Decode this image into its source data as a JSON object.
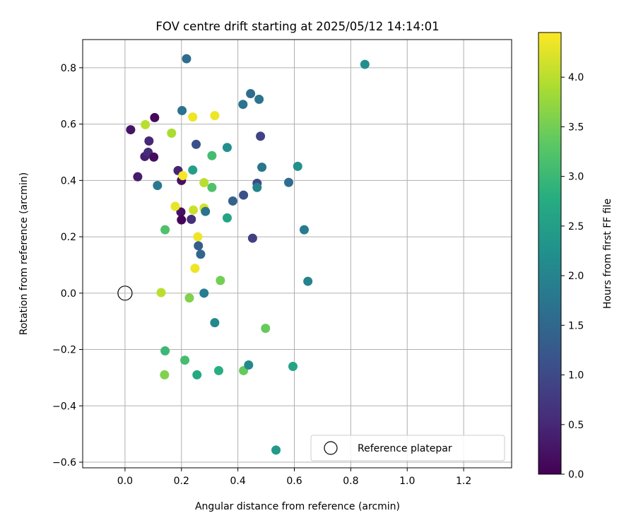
{
  "chart_data": {
    "type": "scatter",
    "title": "FOV centre drift starting at 2025/05/12 14:14:01",
    "xlabel": "Angular distance from reference (arcmin)",
    "ylabel": "Rotation from reference (arcmin)",
    "xlim": [
      -0.15,
      1.37
    ],
    "ylim": [
      -0.62,
      0.9
    ],
    "xticks": [
      "0.0",
      "0.2",
      "0.4",
      "0.6",
      "0.8",
      "1.0",
      "1.2"
    ],
    "yticks": [
      "−0.6",
      "−0.4",
      "−0.2",
      "0.0",
      "0.2",
      "0.4",
      "0.6",
      "0.8"
    ],
    "grid": true,
    "colormap": "viridis",
    "colorbar": {
      "label": "Hours from first FF file",
      "min": 0.0,
      "max": 4.45,
      "ticks": [
        "0.0",
        "0.5",
        "1.0",
        "1.5",
        "2.0",
        "2.5",
        "3.0",
        "3.5",
        "4.0"
      ]
    },
    "legend": {
      "position": "lower right",
      "entries": [
        "Reference platepar"
      ]
    },
    "reference_point": {
      "x": 0.0,
      "y": 0.0
    },
    "points": [
      {
        "x": 0.02,
        "y": 0.58,
        "c": 0.25
      },
      {
        "x": 0.045,
        "y": 0.413,
        "c": 0.35
      },
      {
        "x": 0.07,
        "y": 0.485,
        "c": 0.4
      },
      {
        "x": 0.082,
        "y": 0.5,
        "c": 0.55
      },
      {
        "x": 0.085,
        "y": 0.54,
        "c": 0.5
      },
      {
        "x": 0.102,
        "y": 0.483,
        "c": 0.15
      },
      {
        "x": 0.105,
        "y": 0.623,
        "c": 0.1
      },
      {
        "x": 0.188,
        "y": 0.435,
        "c": 0.45
      },
      {
        "x": 0.198,
        "y": 0.288,
        "c": 0.2
      },
      {
        "x": 0.2,
        "y": 0.4,
        "c": 0.2
      },
      {
        "x": 0.2,
        "y": 0.26,
        "c": 0.05
      },
      {
        "x": 0.235,
        "y": 0.262,
        "c": 0.6
      },
      {
        "x": 0.072,
        "y": 0.598,
        "c": 4.0
      },
      {
        "x": 0.165,
        "y": 0.568,
        "c": 3.9
      },
      {
        "x": 0.24,
        "y": 0.625,
        "c": 4.35
      },
      {
        "x": 0.318,
        "y": 0.63,
        "c": 4.35
      },
      {
        "x": 0.205,
        "y": 0.417,
        "c": 4.4
      },
      {
        "x": 0.178,
        "y": 0.308,
        "c": 4.3
      },
      {
        "x": 0.242,
        "y": 0.295,
        "c": 4.1
      },
      {
        "x": 0.28,
        "y": 0.302,
        "c": 4.2
      },
      {
        "x": 0.28,
        "y": 0.392,
        "c": 4.0
      },
      {
        "x": 0.258,
        "y": 0.2,
        "c": 4.35
      },
      {
        "x": 0.248,
        "y": 0.088,
        "c": 4.35
      },
      {
        "x": 0.128,
        "y": 0.002,
        "c": 4.0
      },
      {
        "x": 0.218,
        "y": 0.832,
        "c": 1.6
      },
      {
        "x": 0.202,
        "y": 0.648,
        "c": 1.7
      },
      {
        "x": 0.115,
        "y": 0.382,
        "c": 1.8
      },
      {
        "x": 0.252,
        "y": 0.528,
        "c": 1.1
      },
      {
        "x": 0.26,
        "y": 0.168,
        "c": 1.3
      },
      {
        "x": 0.268,
        "y": 0.138,
        "c": 1.5
      },
      {
        "x": 0.285,
        "y": 0.29,
        "c": 1.7
      },
      {
        "x": 0.28,
        "y": 0.0,
        "c": 1.9
      },
      {
        "x": 0.318,
        "y": -0.105,
        "c": 2.1
      },
      {
        "x": 0.24,
        "y": 0.437,
        "c": 2.5
      },
      {
        "x": 0.308,
        "y": 0.488,
        "c": 3.1
      },
      {
        "x": 0.308,
        "y": 0.375,
        "c": 3.2
      },
      {
        "x": 0.362,
        "y": 0.517,
        "c": 2.2
      },
      {
        "x": 0.362,
        "y": 0.267,
        "c": 2.6
      },
      {
        "x": 0.338,
        "y": 0.045,
        "c": 3.5
      },
      {
        "x": 0.142,
        "y": 0.225,
        "c": 3.2
      },
      {
        "x": 0.228,
        "y": -0.017,
        "c": 3.6
      },
      {
        "x": 0.142,
        "y": -0.205,
        "c": 3.0
      },
      {
        "x": 0.212,
        "y": -0.238,
        "c": 3.1
      },
      {
        "x": 0.14,
        "y": -0.29,
        "c": 3.6
      },
      {
        "x": 0.255,
        "y": -0.29,
        "c": 2.7
      },
      {
        "x": 0.332,
        "y": -0.275,
        "c": 2.8
      },
      {
        "x": 0.42,
        "y": -0.275,
        "c": 3.4
      },
      {
        "x": 0.438,
        "y": -0.255,
        "c": 2.1
      },
      {
        "x": 0.498,
        "y": -0.125,
        "c": 3.4
      },
      {
        "x": 0.535,
        "y": -0.557,
        "c": 2.4
      },
      {
        "x": 0.595,
        "y": -0.26,
        "c": 2.6
      },
      {
        "x": 0.382,
        "y": 0.327,
        "c": 1.4
      },
      {
        "x": 0.418,
        "y": 0.67,
        "c": 1.7
      },
      {
        "x": 0.42,
        "y": 0.348,
        "c": 1.1
      },
      {
        "x": 0.445,
        "y": 0.708,
        "c": 1.6
      },
      {
        "x": 0.452,
        "y": 0.195,
        "c": 0.85
      },
      {
        "x": 0.468,
        "y": 0.39,
        "c": 1.0
      },
      {
        "x": 0.468,
        "y": 0.375,
        "c": 2.0
      },
      {
        "x": 0.475,
        "y": 0.688,
        "c": 1.75
      },
      {
        "x": 0.48,
        "y": 0.557,
        "c": 0.9
      },
      {
        "x": 0.485,
        "y": 0.447,
        "c": 1.75
      },
      {
        "x": 0.58,
        "y": 0.393,
        "c": 1.6
      },
      {
        "x": 0.612,
        "y": 0.45,
        "c": 2.25
      },
      {
        "x": 0.635,
        "y": 0.225,
        "c": 1.85
      },
      {
        "x": 0.648,
        "y": 0.042,
        "c": 2.0
      },
      {
        "x": 0.85,
        "y": 0.812,
        "c": 2.2
      }
    ]
  }
}
